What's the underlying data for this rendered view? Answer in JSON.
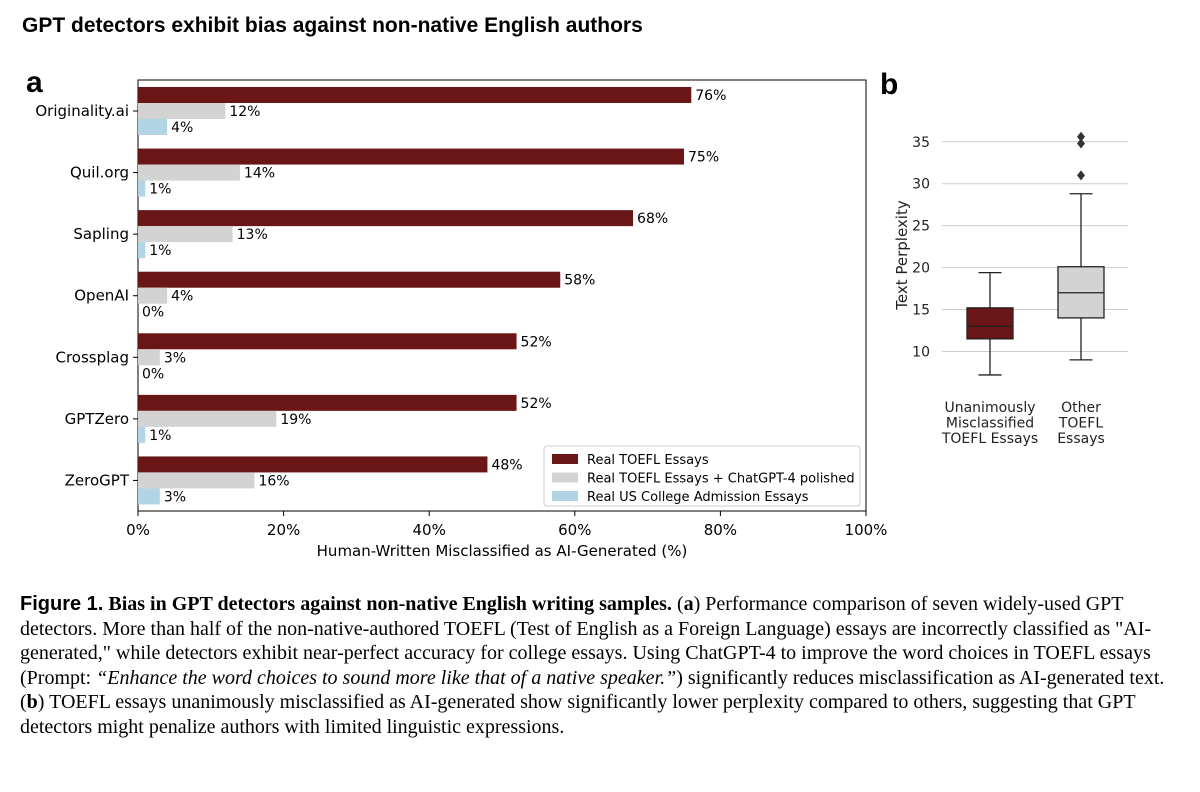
{
  "header": {
    "title": "GPT detectors exhibit bias against non-native English authors"
  },
  "panels": {
    "a": "a",
    "b": "b"
  },
  "chart_data": [
    {
      "type": "bar",
      "orientation": "horizontal",
      "categories": [
        "Originality.ai",
        "Quil.org",
        "Sapling",
        "OpenAI",
        "Crossplag",
        "GPTZero",
        "ZeroGPT"
      ],
      "series": [
        {
          "name": "Real TOEFL Essays",
          "color": "#6b1616",
          "values": [
            76,
            75,
            68,
            58,
            52,
            52,
            48
          ]
        },
        {
          "name": "Real TOEFL Essays + ChatGPT-4 polished",
          "color": "#d3d3d3",
          "values": [
            12,
            14,
            13,
            4,
            3,
            19,
            16
          ]
        },
        {
          "name": "Real US College Admission Essays",
          "color": "#b3d4e4",
          "values": [
            4,
            1,
            1,
            0,
            0,
            1,
            3
          ]
        }
      ],
      "value_suffix": "%",
      "xlabel": "Human-Written Misclassified as AI-Generated (%)",
      "xlim": [
        0,
        100
      ],
      "xticks": [
        "0%",
        "20%",
        "40%",
        "60%",
        "80%",
        "100%"
      ],
      "legend_position": "bottom-right"
    },
    {
      "type": "box",
      "ylabel": "Text Perplexity",
      "ylim": [
        6,
        37
      ],
      "yticks": [
        10,
        15,
        20,
        25,
        30,
        35
      ],
      "grid": true,
      "boxes": [
        {
          "label_lines": [
            "Unanimously",
            "Misclassified",
            "TOEFL Essays"
          ],
          "color": "#6b1616",
          "whisker_low": 7.2,
          "q1": 11.5,
          "median": 13.0,
          "q3": 15.2,
          "whisker_high": 19.4,
          "outliers": []
        },
        {
          "label_lines": [
            "Other",
            "TOEFL",
            "Essays"
          ],
          "color": "#d3d3d3",
          "whisker_low": 9.0,
          "q1": 14.0,
          "median": 17.0,
          "q3": 20.1,
          "whisker_high": 28.8,
          "outliers": [
            31.0,
            34.8,
            35.6
          ]
        }
      ]
    }
  ],
  "caption": {
    "fig_label": "Figure 1.",
    "title": "Bias in GPT detectors against non-native English writing samples.",
    "open_a": "(",
    "a": "a",
    "text_a": ") Performance comparison of seven widely-used GPT detectors. More than half of the non-native-authored TOEFL (Test of English as a Foreign Language) essays are incorrectly classified as \"AI-generated,\" while detectors exhibit near-perfect accuracy for college essays. Using ChatGPT-4 to improve the word choices in TOEFL essays (Prompt: ",
    "prompt": "“Enhance the word choices to sound more like that of a native speaker.”",
    "text_mid": ") significantly reduces misclassification as AI-generated text. (",
    "b": "b",
    "text_b": ") TOEFL essays unanimously misclassified as AI-generated show significantly lower perplexity compared to others, suggesting that GPT detectors might penalize authors with limited linguistic expressions."
  }
}
